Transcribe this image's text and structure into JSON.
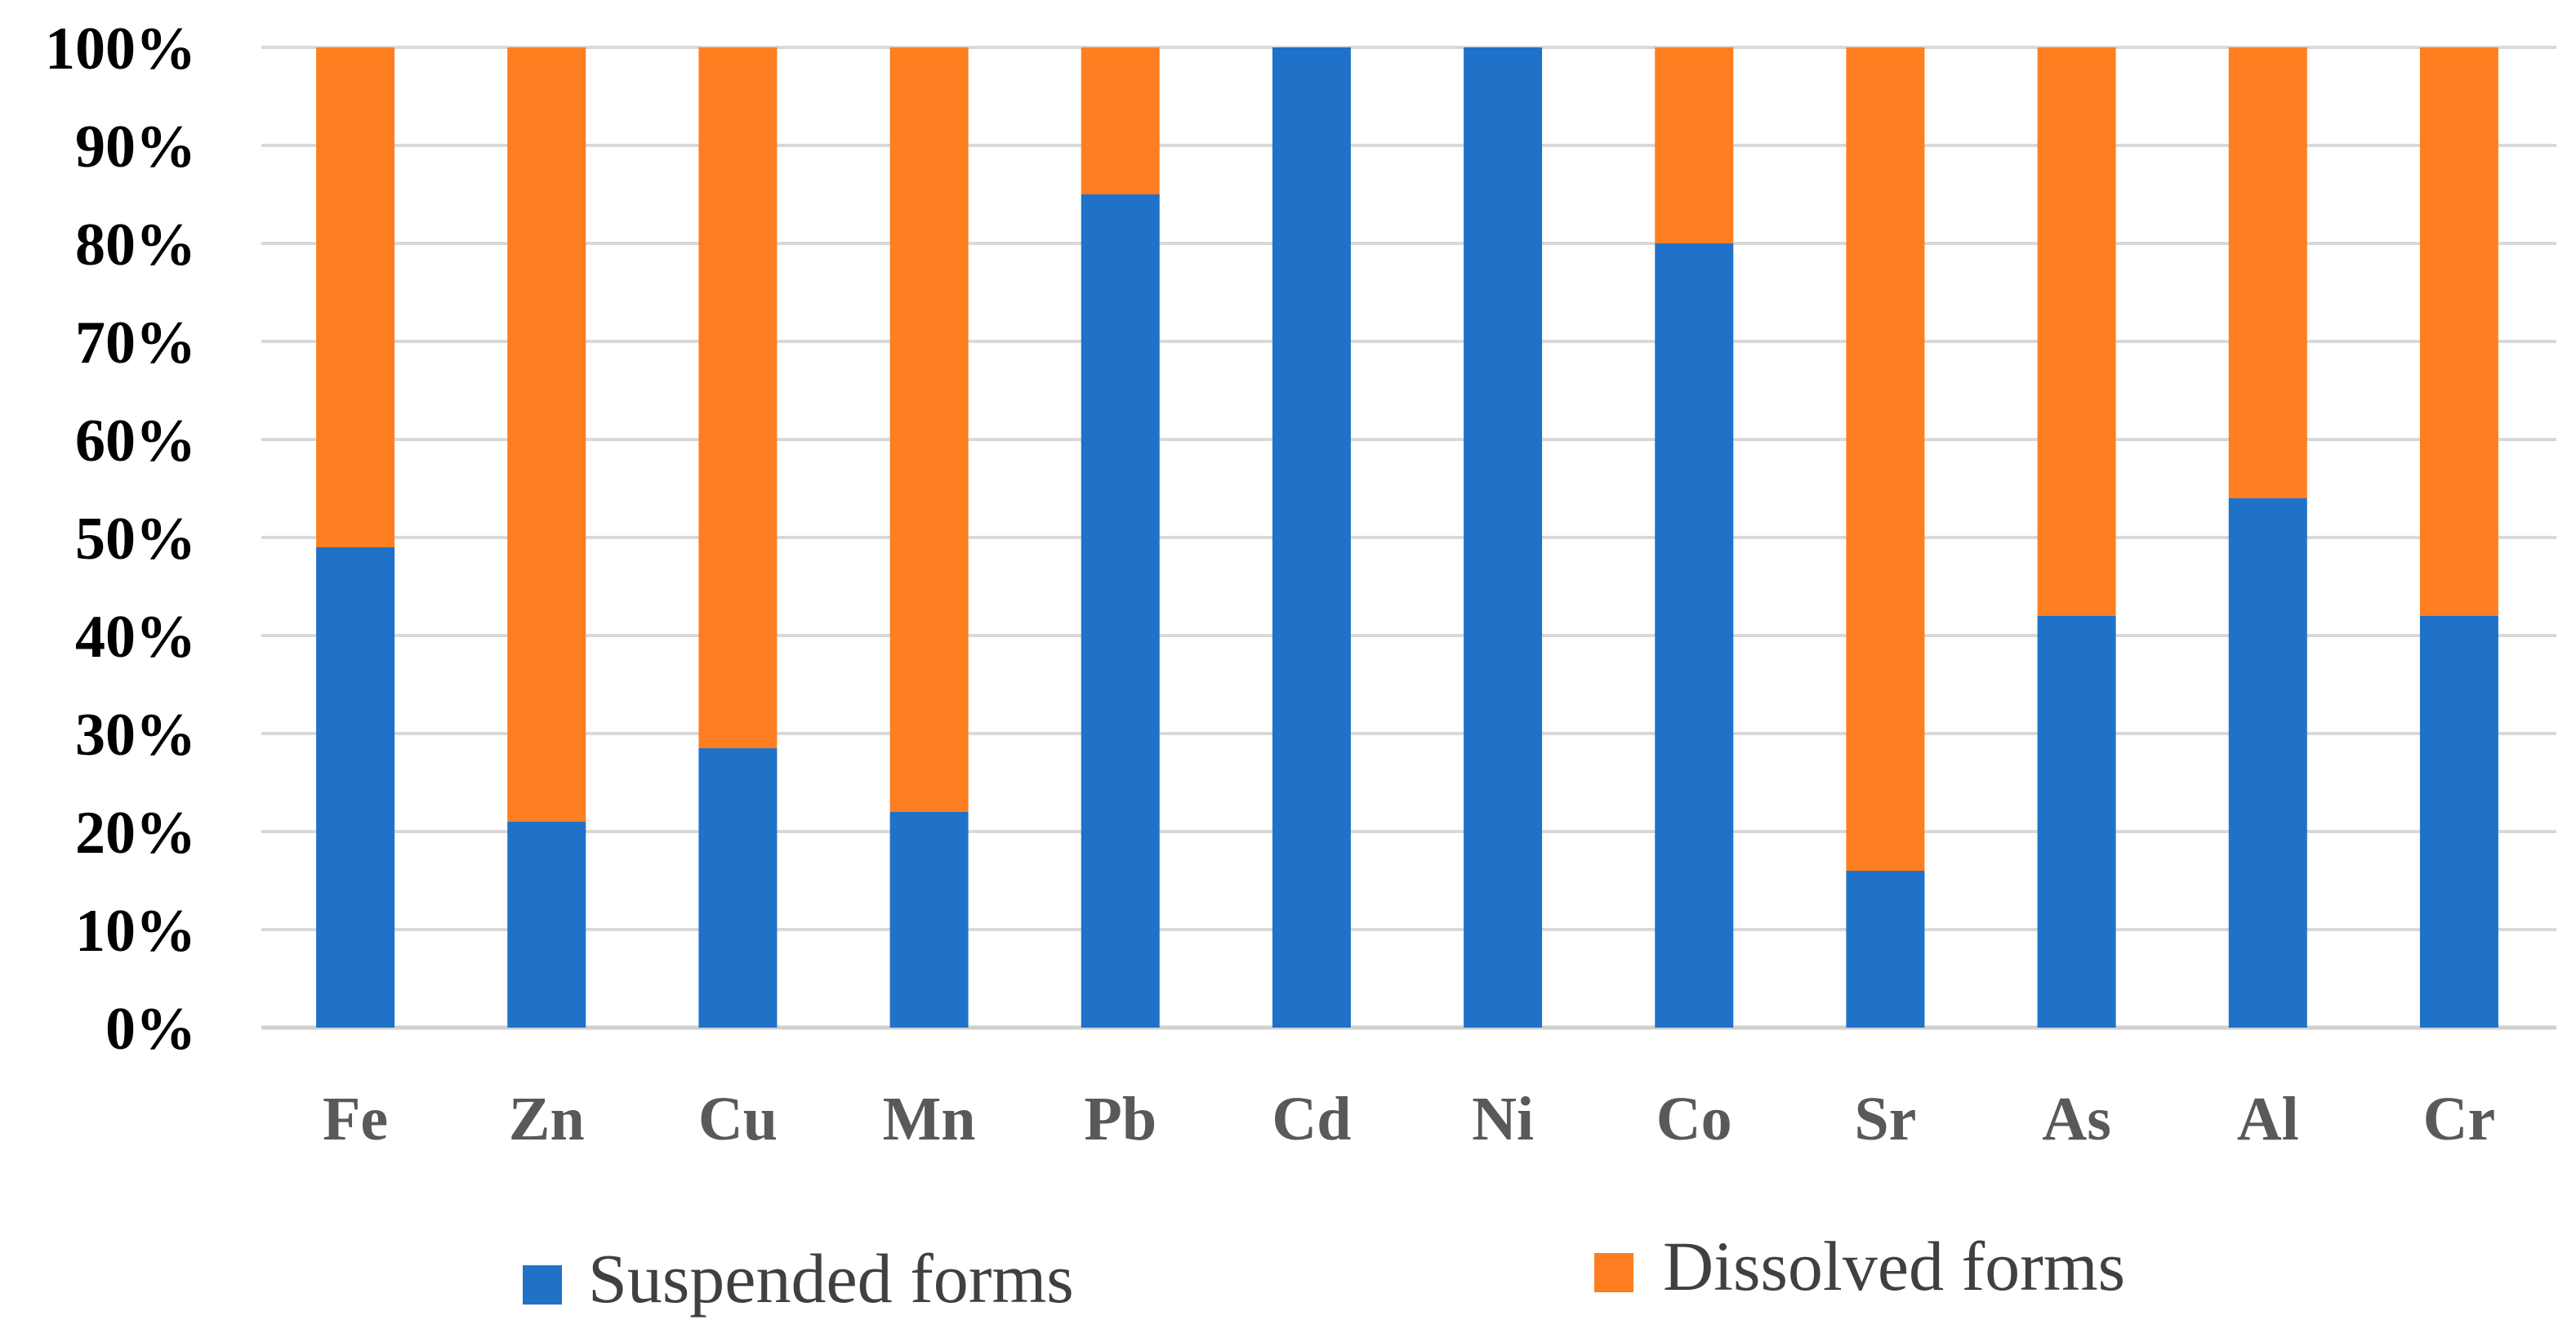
{
  "chart_data": {
    "type": "bar",
    "stacked": true,
    "percent": true,
    "title": "",
    "xlabel": "",
    "ylabel": "",
    "ylim": [
      0,
      100
    ],
    "yticks": [
      "0%",
      "10%",
      "20%",
      "30%",
      "40%",
      "50%",
      "60%",
      "70%",
      "80%",
      "90%",
      "100%"
    ],
    "grid": true,
    "legend_position": "bottom",
    "categories": [
      "Fe",
      "Zn",
      "Cu",
      "Mn",
      "Pb",
      "Cd",
      "Ni",
      "Co",
      "Sr",
      "As",
      "Al",
      "Cr"
    ],
    "series": [
      {
        "name": "Suspended forms",
        "color": "#1f72c8",
        "values": [
          49,
          21,
          28.5,
          22,
          85,
          100,
          100,
          80,
          16,
          42,
          54,
          42
        ]
      },
      {
        "name": "Dissolved forms",
        "color": "#fd7f21",
        "values": [
          51,
          79,
          71.5,
          78,
          15,
          0,
          0,
          20,
          84,
          58,
          46,
          58
        ]
      }
    ]
  }
}
